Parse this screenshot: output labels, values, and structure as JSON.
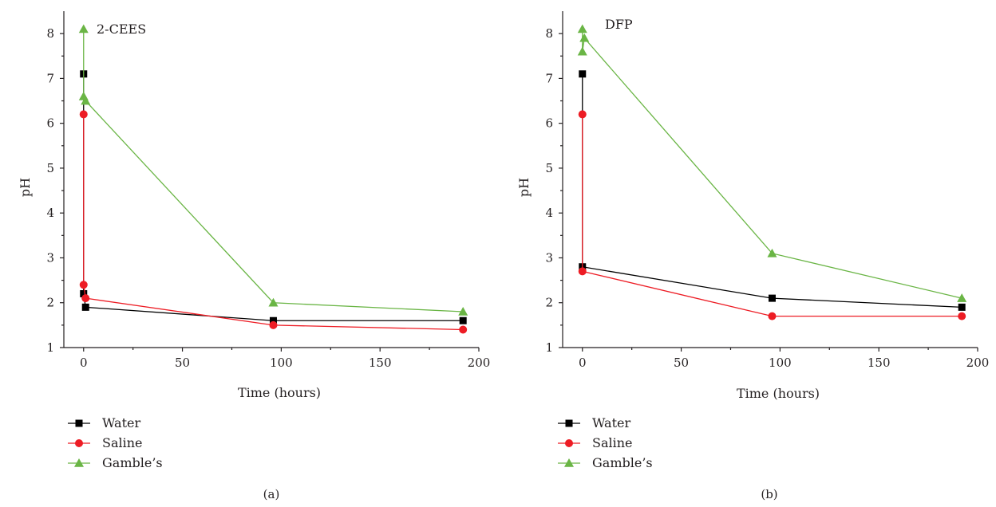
{
  "chart_data": [
    {
      "type": "line",
      "panel_label": "(a)",
      "annotation": "2-CEES",
      "xlabel": "Time (hours)",
      "ylabel": "pH",
      "xlim": [
        -10,
        200
      ],
      "ylim": [
        1,
        8.5
      ],
      "xticks": [
        "0",
        "50",
        "100",
        "150",
        "200"
      ],
      "yticks": [
        "1",
        "2",
        "3",
        "4",
        "5",
        "6",
        "7",
        "8"
      ],
      "series": [
        {
          "name": "Water",
          "color": "#000000",
          "marker": "square",
          "x": [
            0,
            0,
            1,
            96,
            192
          ],
          "y": [
            7.1,
            2.2,
            1.9,
            1.6,
            1.6
          ]
        },
        {
          "name": "Saline",
          "color": "#ed1c24",
          "marker": "circle",
          "x": [
            0,
            0,
            1,
            96,
            192
          ],
          "y": [
            6.2,
            2.4,
            2.1,
            1.5,
            1.4
          ]
        },
        {
          "name": "Gamble’s",
          "color": "#6ab545",
          "marker": "triangle",
          "x": [
            0,
            0,
            1,
            96,
            192
          ],
          "y": [
            8.1,
            6.6,
            6.5,
            2.0,
            1.8
          ]
        }
      ],
      "legend_position": "bottom-left"
    },
    {
      "type": "line",
      "panel_label": "(b)",
      "annotation": "DFP",
      "xlabel": "Time (hours)",
      "ylabel": "pH",
      "xlim": [
        -10,
        200
      ],
      "ylim": [
        1,
        8.5
      ],
      "xticks": [
        "0",
        "50",
        "100",
        "150",
        "200"
      ],
      "yticks": [
        "1",
        "2",
        "3",
        "4",
        "5",
        "6",
        "7",
        "8"
      ],
      "series": [
        {
          "name": "Water",
          "color": "#000000",
          "marker": "square",
          "x": [
            0,
            0,
            96,
            192
          ],
          "y": [
            7.1,
            2.8,
            2.1,
            1.9
          ]
        },
        {
          "name": "Saline",
          "color": "#ed1c24",
          "marker": "circle",
          "x": [
            0,
            0,
            96,
            192
          ],
          "y": [
            6.2,
            2.7,
            1.7,
            1.7
          ]
        },
        {
          "name": "Gamble’s",
          "color": "#6ab545",
          "marker": "triangle",
          "x": [
            0,
            0,
            1,
            96,
            192
          ],
          "y": [
            8.1,
            7.6,
            7.9,
            3.1,
            2.1
          ]
        }
      ],
      "legend_position": "bottom-left"
    }
  ]
}
